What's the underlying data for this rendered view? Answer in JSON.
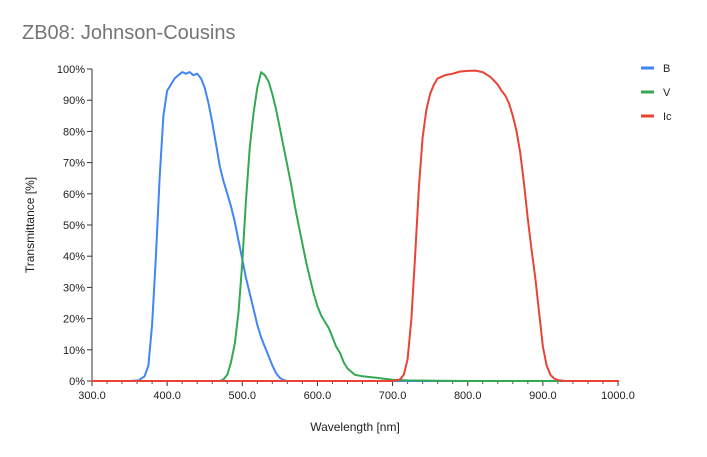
{
  "chart_data": {
    "type": "line",
    "title": "ZB08: Johnson-Cousins",
    "xlabel": "Wavelength [nm]",
    "ylabel": "Transmittance [%]",
    "xlim": [
      300,
      1000
    ],
    "ylim": [
      0,
      100
    ],
    "x_ticks": [
      "300.0",
      "400.0",
      "500.0",
      "600.0",
      "700.0",
      "800.0",
      "900.0",
      "1000.0"
    ],
    "y_ticks": [
      "0%",
      "10%",
      "20%",
      "30%",
      "40%",
      "50%",
      "60%",
      "70%",
      "80%",
      "90%",
      "100%"
    ],
    "grid": false,
    "legend_position": "top-right",
    "series": [
      {
        "name": "B",
        "color": "#4285F4",
        "points": [
          [
            300,
            0
          ],
          [
            350,
            0
          ],
          [
            362,
            0.2
          ],
          [
            370,
            1.5
          ],
          [
            375,
            5
          ],
          [
            380,
            18
          ],
          [
            385,
            40
          ],
          [
            390,
            65
          ],
          [
            395,
            85
          ],
          [
            400,
            93
          ],
          [
            405,
            95
          ],
          [
            410,
            97
          ],
          [
            415,
            98
          ],
          [
            420,
            99
          ],
          [
            425,
            98.5
          ],
          [
            430,
            99
          ],
          [
            435,
            98
          ],
          [
            440,
            98.5
          ],
          [
            445,
            97
          ],
          [
            450,
            94
          ],
          [
            455,
            89
          ],
          [
            460,
            83
          ],
          [
            465,
            76
          ],
          [
            470,
            69
          ],
          [
            475,
            64
          ],
          [
            480,
            60
          ],
          [
            485,
            56
          ],
          [
            490,
            51
          ],
          [
            495,
            45
          ],
          [
            500,
            39
          ],
          [
            505,
            33
          ],
          [
            510,
            28
          ],
          [
            515,
            23
          ],
          [
            520,
            18
          ],
          [
            525,
            14
          ],
          [
            530,
            11
          ],
          [
            535,
            8
          ],
          [
            540,
            5
          ],
          [
            545,
            2.5
          ],
          [
            550,
            1
          ],
          [
            555,
            0.3
          ],
          [
            560,
            0
          ],
          [
            600,
            0
          ],
          [
            700,
            0
          ],
          [
            800,
            0
          ],
          [
            900,
            0
          ],
          [
            1000,
            0
          ]
        ]
      },
      {
        "name": "V",
        "color": "#34A853",
        "points": [
          [
            300,
            0
          ],
          [
            400,
            0
          ],
          [
            470,
            0
          ],
          [
            475,
            0.5
          ],
          [
            480,
            2
          ],
          [
            485,
            6
          ],
          [
            490,
            12
          ],
          [
            495,
            22
          ],
          [
            500,
            38
          ],
          [
            505,
            58
          ],
          [
            510,
            75
          ],
          [
            515,
            86
          ],
          [
            520,
            94
          ],
          [
            525,
            99
          ],
          [
            530,
            98
          ],
          [
            535,
            96
          ],
          [
            540,
            92
          ],
          [
            545,
            87
          ],
          [
            550,
            81
          ],
          [
            555,
            75
          ],
          [
            560,
            69
          ],
          [
            565,
            63
          ],
          [
            570,
            56
          ],
          [
            575,
            50
          ],
          [
            580,
            44
          ],
          [
            585,
            38
          ],
          [
            590,
            33
          ],
          [
            595,
            28
          ],
          [
            600,
            24
          ],
          [
            605,
            21
          ],
          [
            610,
            19
          ],
          [
            615,
            17
          ],
          [
            620,
            14
          ],
          [
            625,
            11
          ],
          [
            630,
            9
          ],
          [
            635,
            6
          ],
          [
            640,
            4
          ],
          [
            645,
            3
          ],
          [
            650,
            2
          ],
          [
            660,
            1.5
          ],
          [
            680,
            1
          ],
          [
            700,
            0.4
          ],
          [
            720,
            0.2
          ],
          [
            760,
            0.1
          ],
          [
            800,
            0
          ],
          [
            900,
            0
          ],
          [
            1000,
            0
          ]
        ]
      },
      {
        "name": "Ic",
        "color": "#EA4335",
        "points": [
          [
            300,
            0
          ],
          [
            400,
            0
          ],
          [
            600,
            0
          ],
          [
            700,
            0
          ],
          [
            710,
            0.5
          ],
          [
            715,
            2
          ],
          [
            720,
            7
          ],
          [
            725,
            20
          ],
          [
            730,
            40
          ],
          [
            735,
            62
          ],
          [
            740,
            78
          ],
          [
            745,
            87
          ],
          [
            750,
            92
          ],
          [
            755,
            95
          ],
          [
            760,
            97
          ],
          [
            765,
            97.5
          ],
          [
            770,
            98
          ],
          [
            780,
            98.5
          ],
          [
            790,
            99.2
          ],
          [
            800,
            99.4
          ],
          [
            810,
            99.5
          ],
          [
            820,
            99
          ],
          [
            830,
            97.5
          ],
          [
            840,
            95
          ],
          [
            845,
            93
          ],
          [
            850,
            91.5
          ],
          [
            855,
            89
          ],
          [
            860,
            85
          ],
          [
            865,
            80
          ],
          [
            870,
            73
          ],
          [
            875,
            63
          ],
          [
            880,
            52
          ],
          [
            885,
            42
          ],
          [
            890,
            33
          ],
          [
            895,
            22
          ],
          [
            900,
            11
          ],
          [
            905,
            5
          ],
          [
            910,
            2
          ],
          [
            915,
            0.8
          ],
          [
            920,
            0.3
          ],
          [
            930,
            0
          ],
          [
            1000,
            0
          ]
        ]
      }
    ]
  }
}
